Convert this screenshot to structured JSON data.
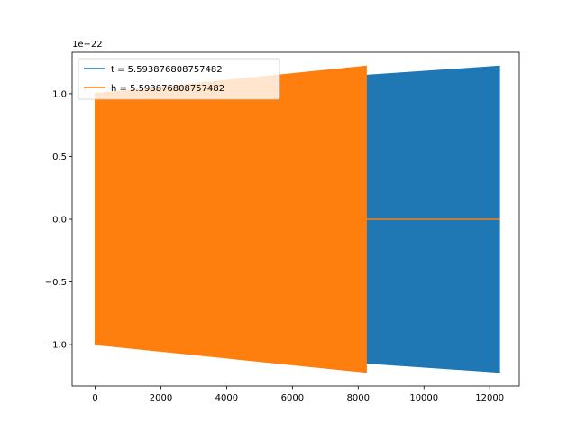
{
  "chart_data": {
    "type": "line",
    "title": "",
    "xlabel": "",
    "ylabel": "",
    "offset_text": "1e−22",
    "xlim": [
      -700,
      12900
    ],
    "ylim": [
      -1.33,
      1.33
    ],
    "x_ticks": [
      0,
      2000,
      4000,
      6000,
      8000,
      10000,
      12000
    ],
    "x_tick_labels": [
      "0",
      "2000",
      "4000",
      "6000",
      "8000",
      "10000",
      "12000"
    ],
    "y_ticks": [
      -1.0,
      -0.5,
      0.0,
      0.5,
      1.0
    ],
    "y_tick_labels": [
      "−1.0",
      "−0.5",
      "0.0",
      "0.5",
      "1.0"
    ],
    "grid": false,
    "legend_position": "upper-left",
    "series": [
      {
        "name": "t = 5.593876808757482",
        "color": "#1f77b4",
        "x_range": [
          0,
          12300
        ],
        "envelope_upper_start": 1.0,
        "envelope_upper_end": 1.22,
        "envelope_lower_start": -1.0,
        "envelope_lower_end": -1.22,
        "note_signal": "oscillating"
      },
      {
        "name": "h = 5.593876808757482",
        "color": "#ff7f0e",
        "x_range": [
          0,
          8250
        ],
        "envelope_upper_start": 1.0,
        "envelope_upper_end": 1.22,
        "envelope_lower_start": -1.0,
        "envelope_lower_end": -1.22,
        "flat_x_range": [
          8250,
          12300
        ],
        "flat_value": 0.0
      }
    ]
  }
}
